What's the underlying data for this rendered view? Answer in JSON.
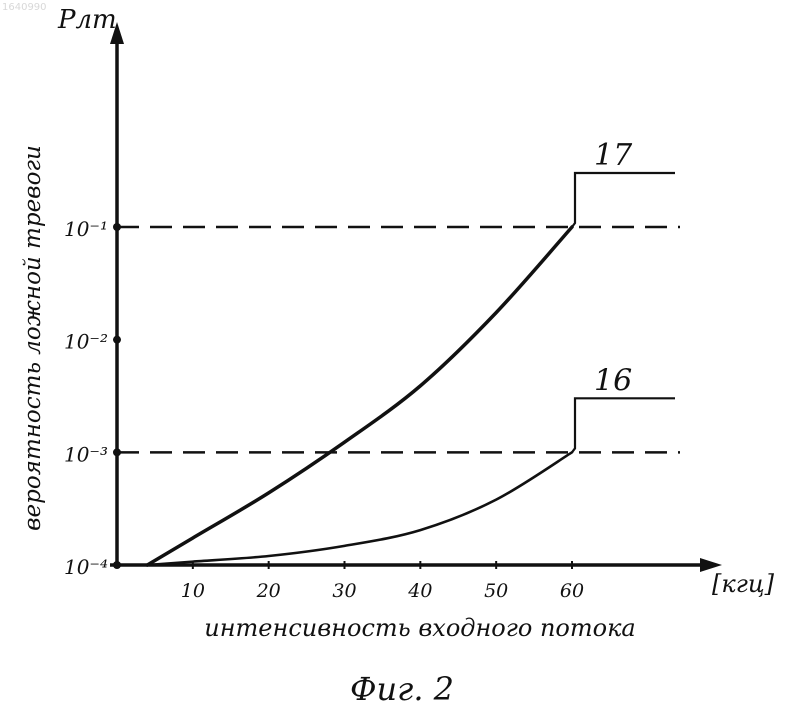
{
  "figure": {
    "watermark": "1640990",
    "caption": "Фиг. 2"
  },
  "chart_data": {
    "type": "line",
    "ylabel_top": "Pлт",
    "ylabel": "вероятность ложной тревоги",
    "xlabel": "интенсивность входного потока",
    "x_unit": "[кгц]",
    "xticks": [
      "10",
      "20",
      "30",
      "40",
      "50",
      "60"
    ],
    "x_tick_values": [
      10,
      20,
      30,
      40,
      50,
      60
    ],
    "yticks": [
      {
        "label": "10⁻⁴",
        "exp": -4
      },
      {
        "label": "10⁻³",
        "exp": -3
      },
      {
        "label": "10⁻²",
        "exp": -2
      },
      {
        "label": "10⁻¹",
        "exp": -1
      }
    ],
    "yscale": "log",
    "xlim": [
      0,
      80
    ],
    "ylim_exp": [
      -4,
      0.55
    ],
    "grid": false,
    "thresholds": [
      {
        "exp": -1,
        "style": "dashed"
      },
      {
        "exp": -3,
        "style": "dashed"
      }
    ],
    "series": [
      {
        "name": "17",
        "x": [
          4,
          10,
          20,
          30,
          40,
          50,
          60
        ],
        "y_exp": [
          -4.0,
          -3.76,
          -3.36,
          -2.91,
          -2.41,
          -1.76,
          -1.0
        ]
      },
      {
        "name": "16",
        "x": [
          4,
          10,
          20,
          30,
          40,
          50,
          60
        ],
        "y_exp": [
          -4.0,
          -3.97,
          -3.92,
          -3.83,
          -3.69,
          -3.42,
          -3.0
        ]
      }
    ]
  }
}
